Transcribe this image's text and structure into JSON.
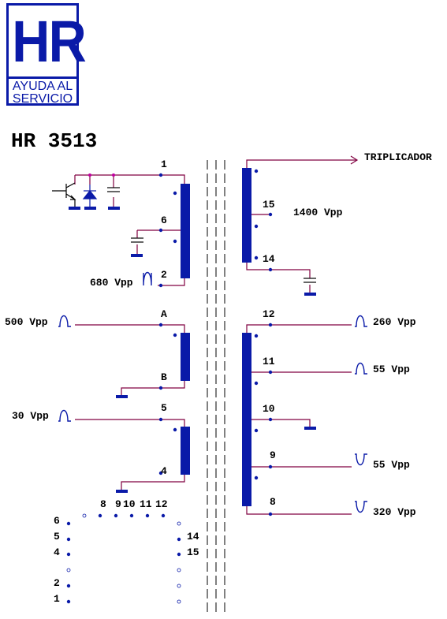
{
  "logo": {
    "mark": "HR",
    "line1": "AYUDA AL",
    "line2": "SERVICIO"
  },
  "model": "HR 3513",
  "pins": {
    "p1": "1",
    "p6": "6",
    "p2": "2",
    "pA": "A",
    "pB": "B",
    "p5": "5",
    "p4": "4",
    "p15": "15",
    "p14": "14",
    "p12": "12",
    "p11": "11",
    "p10": "10",
    "p9": "9",
    "p8": "8"
  },
  "voltages": {
    "v680": "680 Vpp",
    "v500": "500 Vpp",
    "v30": "30 Vpp",
    "v1400": "1400 Vpp",
    "v260": "260 Vpp",
    "v55a": "55 Vpp",
    "v55b": "55 Vpp",
    "v320": "320 Vpp"
  },
  "triplicador": "TRIPLICADOR",
  "footprint": {
    "top": [
      "8",
      "9",
      "10",
      "11",
      "12"
    ],
    "left": [
      "6",
      "5",
      "4",
      "2",
      "1"
    ],
    "right": [
      "14",
      "15"
    ]
  },
  "colors": {
    "wire": "#800040",
    "coil": "#0a1aa8",
    "text": "#000000"
  }
}
